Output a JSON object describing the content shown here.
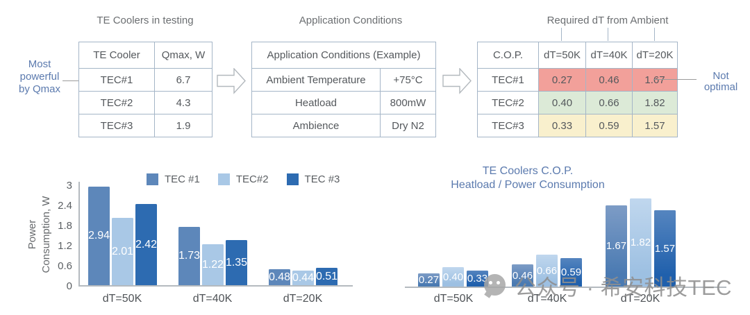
{
  "tables": {
    "te_coolers": {
      "title": "TE Coolers in testing",
      "headers": [
        "TE Cooler",
        "Qmax, W"
      ],
      "rows": [
        {
          "name": "TEC#1",
          "qmax": "6.7"
        },
        {
          "name": "TEC#2",
          "qmax": "4.3"
        },
        {
          "name": "TEC#3",
          "qmax": "1.9"
        }
      ]
    },
    "application_conditions": {
      "title": "Application Conditions",
      "header": "Application Conditions (Example)",
      "rows": [
        {
          "param": "Ambient Temperature",
          "value": "+75°C"
        },
        {
          "param": "Heatload",
          "value": "800mW"
        },
        {
          "param": "Ambience",
          "value": "Dry N2"
        }
      ]
    },
    "cop": {
      "title": "Required dT from Ambient",
      "headers": [
        "C.O.P.",
        "dT=50K",
        "dT=40K",
        "dT=20K"
      ],
      "rows": [
        {
          "name": "TEC#1",
          "values": [
            "0.27",
            "0.46",
            "1.67"
          ],
          "color": "#f2a09a"
        },
        {
          "name": "TEC#2",
          "values": [
            "0.40",
            "0.66",
            "1.82"
          ],
          "color": "#dcead7"
        },
        {
          "name": "TEC#3",
          "values": [
            "0.33",
            "0.59",
            "1.57"
          ],
          "color": "#f9f0cd"
        }
      ]
    }
  },
  "annotations": {
    "most_powerful": {
      "lines": [
        "Most",
        "powerful",
        "by Qmax"
      ]
    },
    "not_optimal": {
      "lines": [
        "Not",
        "optimal"
      ]
    }
  },
  "chart_data": [
    {
      "type": "bar",
      "title": "",
      "ylabel": "Power Consumption, W",
      "ylabel_lines": [
        "Power",
        "Consumption, W"
      ],
      "ylim": [
        0,
        3
      ],
      "yticks": [
        "3",
        "2.4",
        "1.8",
        "1.2",
        "0.6",
        "0"
      ],
      "grid": false,
      "legend_position": "top",
      "categories": [
        "dT=50K",
        "dT=40K",
        "dT=20K"
      ],
      "series": [
        {
          "name": "TEC #1",
          "color": "#5d87ba",
          "color_top": "#7d9cc6",
          "values": [
            2.94,
            1.73,
            0.48
          ],
          "labels": [
            "2.94",
            "1.73",
            "0.48"
          ]
        },
        {
          "name": "TEC#2",
          "color": "#a9c8e6",
          "color_top": "#bdd5ec",
          "values": [
            2.01,
            1.22,
            0.44
          ],
          "labels": [
            "2.01",
            "1.22",
            "0.44"
          ]
        },
        {
          "name": "TEC #3",
          "color": "#2d6bb1",
          "color_top": "#5585bf",
          "values": [
            2.42,
            1.35,
            0.51
          ],
          "labels": [
            "2.42",
            "1.35",
            "0.51"
          ]
        }
      ]
    },
    {
      "type": "bar",
      "title": "TE Coolers C.O.P. Heatload / Power Consumption",
      "title_lines": [
        "TE Coolers C.O.P.",
        "Heatload / Power Consumption"
      ],
      "ylim": [
        0,
        2
      ],
      "grid": false,
      "categories": [
        "dT=50K",
        "dT=40K",
        "dT=20K"
      ],
      "series": [
        {
          "name": "TEC #1",
          "color": "#4a7ab2",
          "color_top": "#7d9cc6",
          "values": [
            0.27,
            0.46,
            1.67
          ],
          "labels": [
            "0.27",
            "0.46",
            "1.67"
          ]
        },
        {
          "name": "TEC#2",
          "color": "#9dc0e2",
          "color_top": "#c0d7ee",
          "values": [
            0.4,
            0.66,
            1.82
          ],
          "labels": [
            "0.40",
            "0.66",
            "1.82"
          ]
        },
        {
          "name": "TEC #3",
          "color": "#2060ac",
          "color_top": "#5585bf",
          "values": [
            0.33,
            0.59,
            1.57
          ],
          "labels": [
            "0.33",
            "0.59",
            "1.57"
          ]
        }
      ]
    }
  ],
  "watermark": {
    "icon": "wechat-icon",
    "text": "公众号 · 希安科技TEC"
  },
  "colors": {
    "tec1_bar": "#5d87ba",
    "tec2_bar": "#a9c8e6",
    "tec3_bar": "#2d6bb1",
    "cop_tec1_cell": "#f2a09a",
    "cop_tec2_cell": "#dcead7",
    "cop_tec3_cell": "#f9f0cd",
    "annotation_blue": "#5b7aae",
    "table_border": "#a4b5c7"
  }
}
